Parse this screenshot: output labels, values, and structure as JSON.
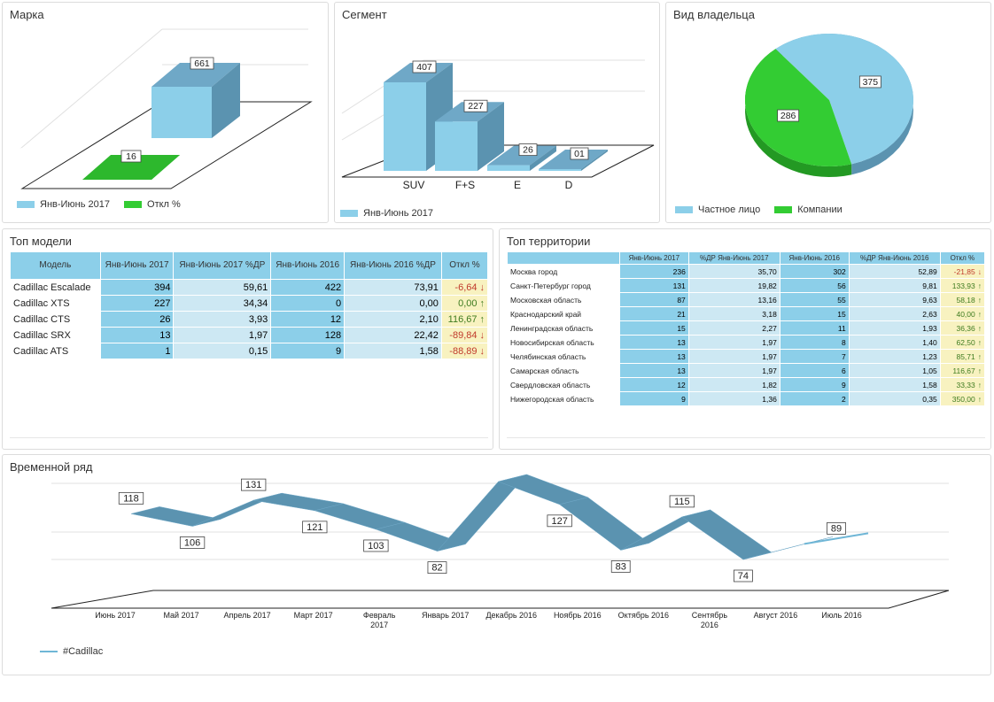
{
  "brand": {
    "title": "Марка",
    "bar_label": "661",
    "change_label": "16",
    "legend": [
      {
        "label": "Янв-Июнь 2017",
        "color": "#8ccfe9"
      },
      {
        "label": "Откл %",
        "color": "#33cc33"
      }
    ]
  },
  "segment": {
    "title": "Сегмент",
    "legend": [
      {
        "label": "Янв-Июнь 2017",
        "color": "#8ccfe9"
      }
    ]
  },
  "owner": {
    "title": "Вид владельца",
    "legend": [
      {
        "label": "Частное лицо",
        "color": "#8ccfe9"
      },
      {
        "label": "Компании",
        "color": "#33cc33"
      }
    ]
  },
  "models": {
    "title": "Топ модели",
    "headers": [
      "Модель",
      "Янв-Июнь 2017",
      "Янв-Июнь 2017 %ДР",
      "Янв-Июнь 2016",
      "Янв-Июнь 2016 %ДР",
      "Откл %"
    ],
    "rows": [
      [
        "Cadillac Escalade",
        "394",
        "59,61",
        "422",
        "73,91",
        "-6,64",
        "down"
      ],
      [
        "Cadillac XTS",
        "227",
        "34,34",
        "0",
        "0,00",
        "0,00",
        "up"
      ],
      [
        "Cadillac CTS",
        "26",
        "3,93",
        "12",
        "2,10",
        "116,67",
        "up"
      ],
      [
        "Cadillac SRX",
        "13",
        "1,97",
        "128",
        "22,42",
        "-89,84",
        "down"
      ],
      [
        "Cadillac ATS",
        "1",
        "0,15",
        "9",
        "1,58",
        "-88,89",
        "down"
      ]
    ]
  },
  "territories": {
    "title": "Топ территории",
    "headers": [
      "",
      "Янв-Июнь 2017",
      "%ДР Янв-Июнь 2017",
      "Янв-Июнь 2016",
      "%ДР Янв-Июнь 2016",
      "Откл %"
    ],
    "rows": [
      [
        "Москва город",
        "236",
        "35,70",
        "302",
        "52,89",
        "-21,85",
        "down"
      ],
      [
        "Санкт-Петербург город",
        "131",
        "19,82",
        "56",
        "9,81",
        "133,93",
        "up"
      ],
      [
        "Московская область",
        "87",
        "13,16",
        "55",
        "9,63",
        "58,18",
        "up"
      ],
      [
        "Краснодарский край",
        "21",
        "3,18",
        "15",
        "2,63",
        "40,00",
        "up"
      ],
      [
        "Ленинградская область",
        "15",
        "2,27",
        "11",
        "1,93",
        "36,36",
        "up"
      ],
      [
        "Новосибирская область",
        "13",
        "1,97",
        "8",
        "1,40",
        "62,50",
        "up"
      ],
      [
        "Челябинская область",
        "13",
        "1,97",
        "7",
        "1,23",
        "85,71",
        "up"
      ],
      [
        "Самарская область",
        "13",
        "1,97",
        "6",
        "1,05",
        "116,67",
        "up"
      ],
      [
        "Свердловская область",
        "12",
        "1,82",
        "9",
        "1,58",
        "33,33",
        "up"
      ],
      [
        "Нижегородская область",
        "9",
        "1,36",
        "2",
        "0,35",
        "350,00",
        "up"
      ]
    ]
  },
  "timeseries": {
    "title": "Временной ряд",
    "legend": "#Cadillac"
  },
  "chart_data": [
    {
      "type": "bar",
      "categories": [
        "SUV",
        "F+S",
        "E",
        "D"
      ],
      "values": [
        407,
        227,
        26,
        1
      ],
      "value_labels": [
        "407",
        "227",
        "26",
        "01"
      ],
      "series_name": "Янв-Июнь 2017"
    },
    {
      "type": "pie",
      "labels": [
        "Частное лицо",
        "Компании"
      ],
      "values": [
        375,
        286
      ],
      "colors": [
        "#8ccfe9",
        "#33cc33"
      ]
    },
    {
      "type": "line",
      "x": [
        "Июнь 2017",
        "Май 2017",
        "Апрель 2017",
        "Март 2017",
        "Февраль 2017",
        "Январь 2017",
        "Декабрь 2016",
        "Ноябрь 2016",
        "Октябрь 2016",
        "Сентябрь 2016",
        "Август 2016",
        "Июль 2016"
      ],
      "values": [
        118,
        106,
        131,
        121,
        103,
        82,
        149,
        127,
        83,
        115,
        74,
        89
      ],
      "series_name": "#Cadillac",
      "ylim": [
        0,
        160
      ]
    }
  ]
}
